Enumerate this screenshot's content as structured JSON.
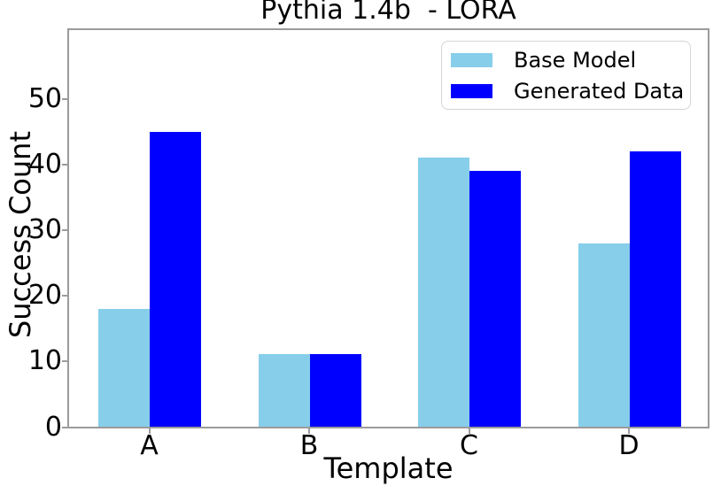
{
  "figure": {
    "background": "#ffffff"
  },
  "chart_data": {
    "type": "bar",
    "title": "Pythia 1.4b  - LORA",
    "xlabel": "Template",
    "ylabel": "Success Count",
    "categories": [
      "A",
      "B",
      "C",
      "D"
    ],
    "series": [
      {
        "name": "Base Model",
        "color": "#87CEEB",
        "values": [
          18,
          11,
          41,
          28
        ]
      },
      {
        "name": "Generated Data",
        "color": "#0000FF",
        "values": [
          45,
          11,
          39,
          42
        ]
      }
    ],
    "yticks": [
      0,
      10,
      20,
      30,
      40,
      50
    ],
    "ylim": [
      0,
      60.6
    ],
    "grid": false,
    "legend_position": "upper right inside",
    "axis_color": "#9b9b9b",
    "text_color": "#000000"
  }
}
